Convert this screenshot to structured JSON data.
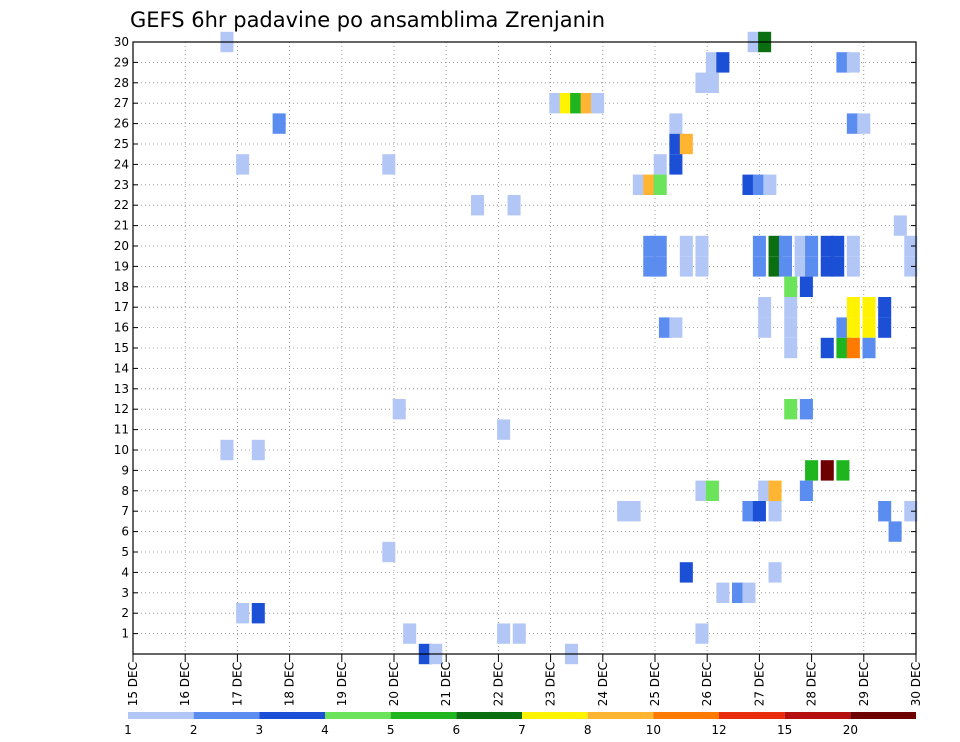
{
  "chart_data": {
    "type": "heatmap",
    "title": "GEFS 6hr padavine po ansamblima Zrenjanin",
    "xlabel": "",
    "ylabel": "",
    "x_ticks": [
      "15 DEC",
      "16 DEC",
      "17 DEC",
      "18 DEC",
      "19 DEC",
      "20 DEC",
      "21 DEC",
      "22 DEC",
      "23 DEC",
      "24 DEC",
      "25 DEC",
      "26 DEC",
      "27 DEC",
      "28 DEC",
      "29 DEC",
      "30 DEC"
    ],
    "y_ticks": [
      1,
      2,
      3,
      4,
      5,
      6,
      7,
      8,
      9,
      10,
      11,
      12,
      13,
      14,
      15,
      16,
      17,
      18,
      19,
      20,
      21,
      22,
      23,
      24,
      25,
      26,
      27,
      28,
      29,
      30
    ],
    "x_range_days": [
      15,
      30
    ],
    "y_range": [
      0,
      30
    ],
    "grid": "dotted",
    "legend": {
      "placement": "bottom",
      "thresholds": [
        "1",
        "2",
        "3",
        "4",
        "5",
        "6",
        "7",
        "8",
        "10",
        "12",
        "15",
        "20"
      ],
      "colors": [
        "#b3c7f7",
        "#5b8cf0",
        "#1a4fd6",
        "#6be35a",
        "#1fb51f",
        "#0b6f12",
        "#fff300",
        "#ffb531",
        "#ff7a00",
        "#e82c0c",
        "#b50f0f",
        "#6e0000"
      ]
    },
    "cells": [
      {
        "member": 30,
        "day": 16.8,
        "cat": 0
      },
      {
        "member": 30,
        "day": 26.9,
        "cat": 0
      },
      {
        "member": 30,
        "day": 27.1,
        "cat": 5
      },
      {
        "member": 29,
        "day": 26.1,
        "cat": 0
      },
      {
        "member": 29,
        "day": 26.3,
        "cat": 2
      },
      {
        "member": 29,
        "day": 28.6,
        "cat": 1
      },
      {
        "member": 29,
        "day": 28.8,
        "cat": 0
      },
      {
        "member": 28,
        "day": 25.9,
        "cat": 0
      },
      {
        "member": 28,
        "day": 26.1,
        "cat": 0
      },
      {
        "member": 27,
        "day": 23.1,
        "cat": 0
      },
      {
        "member": 27,
        "day": 23.3,
        "cat": 6
      },
      {
        "member": 27,
        "day": 23.5,
        "cat": 4
      },
      {
        "member": 27,
        "day": 23.7,
        "cat": 7
      },
      {
        "member": 27,
        "day": 23.9,
        "cat": 0
      },
      {
        "member": 26,
        "day": 17.8,
        "cat": 1
      },
      {
        "member": 26,
        "day": 25.4,
        "cat": 0
      },
      {
        "member": 26,
        "day": 28.8,
        "cat": 1
      },
      {
        "member": 26,
        "day": 29.0,
        "cat": 0
      },
      {
        "member": 25,
        "day": 25.4,
        "cat": 2
      },
      {
        "member": 25,
        "day": 25.6,
        "cat": 7
      },
      {
        "member": 24,
        "day": 17.1,
        "cat": 0
      },
      {
        "member": 24,
        "day": 19.9,
        "cat": 0
      },
      {
        "member": 24,
        "day": 25.1,
        "cat": 0
      },
      {
        "member": 24,
        "day": 25.4,
        "cat": 2
      },
      {
        "member": 23,
        "day": 24.7,
        "cat": 0
      },
      {
        "member": 23,
        "day": 24.9,
        "cat": 7
      },
      {
        "member": 23,
        "day": 25.1,
        "cat": 3
      },
      {
        "member": 23,
        "day": 26.8,
        "cat": 2
      },
      {
        "member": 23,
        "day": 27.0,
        "cat": 1
      },
      {
        "member": 23,
        "day": 27.2,
        "cat": 0
      },
      {
        "member": 22,
        "day": 21.6,
        "cat": 0
      },
      {
        "member": 22,
        "day": 22.3,
        "cat": 0
      },
      {
        "member": 21,
        "day": 29.7,
        "cat": 0
      },
      {
        "member": 20,
        "day": 24.9,
        "cat": 1
      },
      {
        "member": 20,
        "day": 25.1,
        "cat": 1
      },
      {
        "member": 20,
        "day": 25.6,
        "cat": 0
      },
      {
        "member": 20,
        "day": 25.9,
        "cat": 0
      },
      {
        "member": 20,
        "day": 27.0,
        "cat": 1
      },
      {
        "member": 20,
        "day": 27.3,
        "cat": 5
      },
      {
        "member": 20,
        "day": 27.5,
        "cat": 1
      },
      {
        "member": 20,
        "day": 27.8,
        "cat": 0
      },
      {
        "member": 20,
        "day": 28.0,
        "cat": 1
      },
      {
        "member": 20,
        "day": 28.3,
        "cat": 2
      },
      {
        "member": 20,
        "day": 28.5,
        "cat": 2
      },
      {
        "member": 20,
        "day": 28.8,
        "cat": 0
      },
      {
        "member": 20,
        "day": 29.9,
        "cat": 0
      },
      {
        "member": 19,
        "day": 24.9,
        "cat": 1
      },
      {
        "member": 19,
        "day": 25.1,
        "cat": 1
      },
      {
        "member": 19,
        "day": 25.6,
        "cat": 0
      },
      {
        "member": 19,
        "day": 25.9,
        "cat": 0
      },
      {
        "member": 19,
        "day": 27.0,
        "cat": 1
      },
      {
        "member": 19,
        "day": 27.3,
        "cat": 5
      },
      {
        "member": 19,
        "day": 27.5,
        "cat": 1
      },
      {
        "member": 19,
        "day": 27.8,
        "cat": 0
      },
      {
        "member": 19,
        "day": 28.0,
        "cat": 1
      },
      {
        "member": 19,
        "day": 28.3,
        "cat": 2
      },
      {
        "member": 19,
        "day": 28.5,
        "cat": 2
      },
      {
        "member": 19,
        "day": 28.8,
        "cat": 0
      },
      {
        "member": 19,
        "day": 29.9,
        "cat": 0
      },
      {
        "member": 18,
        "day": 27.6,
        "cat": 3
      },
      {
        "member": 18,
        "day": 27.9,
        "cat": 2
      },
      {
        "member": 17,
        "day": 27.1,
        "cat": 0
      },
      {
        "member": 17,
        "day": 27.6,
        "cat": 0
      },
      {
        "member": 16,
        "day": 27.1,
        "cat": 0
      },
      {
        "member": 16,
        "day": 27.6,
        "cat": 0
      },
      {
        "member": 16,
        "day": 25.2,
        "cat": 1
      },
      {
        "member": 16,
        "day": 25.4,
        "cat": 0
      },
      {
        "member": 16,
        "day": 28.6,
        "cat": 1
      },
      {
        "member": 16,
        "day": 28.8,
        "cat": 6
      },
      {
        "member": 16,
        "day": 29.1,
        "cat": 6
      },
      {
        "member": 16,
        "day": 29.4,
        "cat": 2
      },
      {
        "member": 17,
        "day": 28.8,
        "cat": 6
      },
      {
        "member": 17,
        "day": 29.1,
        "cat": 6
      },
      {
        "member": 17,
        "day": 29.4,
        "cat": 2
      },
      {
        "member": 15,
        "day": 27.6,
        "cat": 0
      },
      {
        "member": 15,
        "day": 28.3,
        "cat": 2
      },
      {
        "member": 15,
        "day": 28.6,
        "cat": 4
      },
      {
        "member": 15,
        "day": 28.8,
        "cat": 8
      },
      {
        "member": 15,
        "day": 29.1,
        "cat": 1
      },
      {
        "member": 12,
        "day": 20.1,
        "cat": 0
      },
      {
        "member": 12,
        "day": 27.6,
        "cat": 3
      },
      {
        "member": 12,
        "day": 27.9,
        "cat": 1
      },
      {
        "member": 11,
        "day": 22.1,
        "cat": 0
      },
      {
        "member": 10,
        "day": 16.8,
        "cat": 0
      },
      {
        "member": 10,
        "day": 17.4,
        "cat": 0
      },
      {
        "member": 9,
        "day": 28.0,
        "cat": 4
      },
      {
        "member": 9,
        "day": 28.3,
        "cat": 11
      },
      {
        "member": 9,
        "day": 28.6,
        "cat": 4
      },
      {
        "member": 8,
        "day": 25.9,
        "cat": 0
      },
      {
        "member": 8,
        "day": 26.1,
        "cat": 3
      },
      {
        "member": 8,
        "day": 27.1,
        "cat": 0
      },
      {
        "member": 8,
        "day": 27.3,
        "cat": 7
      },
      {
        "member": 8,
        "day": 27.9,
        "cat": 1
      },
      {
        "member": 7,
        "day": 24.4,
        "cat": 0
      },
      {
        "member": 7,
        "day": 24.6,
        "cat": 0
      },
      {
        "member": 7,
        "day": 26.8,
        "cat": 1
      },
      {
        "member": 7,
        "day": 27.0,
        "cat": 2
      },
      {
        "member": 7,
        "day": 27.3,
        "cat": 0
      },
      {
        "member": 7,
        "day": 29.4,
        "cat": 1
      },
      {
        "member": 7,
        "day": 29.9,
        "cat": 0
      },
      {
        "member": 6,
        "day": 29.6,
        "cat": 1
      },
      {
        "member": 5,
        "day": 19.9,
        "cat": 0
      },
      {
        "member": 4,
        "day": 25.6,
        "cat": 2
      },
      {
        "member": 4,
        "day": 27.3,
        "cat": 0
      },
      {
        "member": 3,
        "day": 26.3,
        "cat": 0
      },
      {
        "member": 3,
        "day": 26.6,
        "cat": 1
      },
      {
        "member": 3,
        "day": 26.8,
        "cat": 0
      },
      {
        "member": 2,
        "day": 17.1,
        "cat": 0
      },
      {
        "member": 2,
        "day": 17.4,
        "cat": 2
      },
      {
        "member": 1,
        "day": 20.3,
        "cat": 0
      },
      {
        "member": 1,
        "day": 22.1,
        "cat": 0
      },
      {
        "member": 1,
        "day": 22.4,
        "cat": 0
      },
      {
        "member": 1,
        "day": 25.9,
        "cat": 0
      },
      {
        "member": 0,
        "day": 20.6,
        "cat": 2
      },
      {
        "member": 0,
        "day": 20.8,
        "cat": 0
      },
      {
        "member": 0,
        "day": 23.4,
        "cat": 0
      }
    ]
  }
}
